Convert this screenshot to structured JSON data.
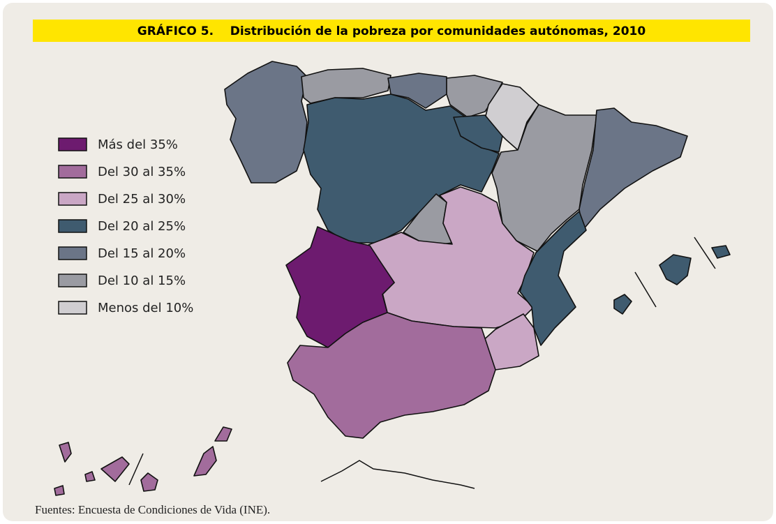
{
  "title": "GRÁFICO 5.    Distribución de la pobreza por comunidades autónomas, 2010",
  "legend": [
    {
      "label": "Más del 35%",
      "color": "#6d1b6f"
    },
    {
      "label": "Del 30 al 35%",
      "color": "#a26c9c"
    },
    {
      "label": "Del 25 al 30%",
      "color": "#caa7c5"
    },
    {
      "label": "Del 20 al 25%",
      "color": "#3f5b6f"
    },
    {
      "label": "Del 15 al 20%",
      "color": "#6b7587"
    },
    {
      "label": "Del 10 al 15%",
      "color": "#9a9ba2"
    },
    {
      "label": "Menos del 10%",
      "color": "#d0ced1"
    }
  ],
  "source": "Fuentes: Encuesta de Condiciones de Vida (INE)."
}
